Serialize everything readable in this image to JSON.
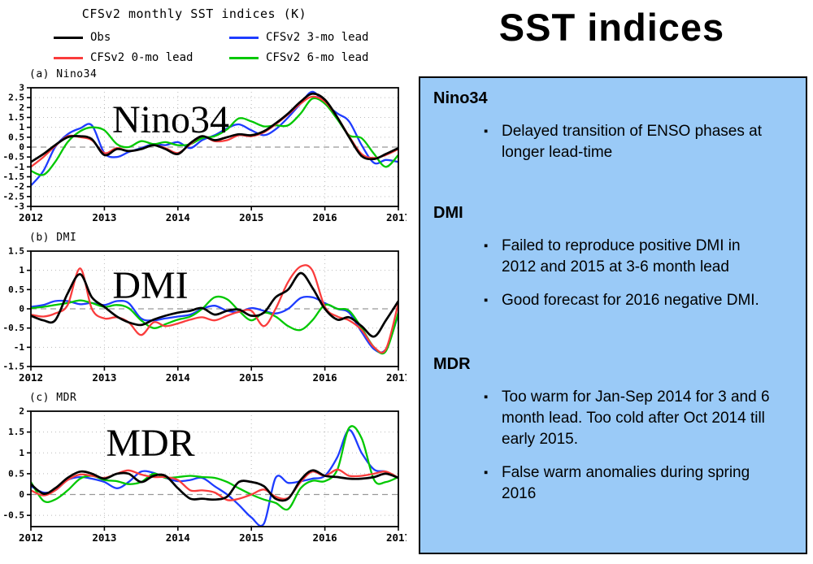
{
  "figure": {
    "title": "CFSv2 monthly SST indices (K)",
    "legend": [
      {
        "label": "Obs",
        "color": "#000000"
      },
      {
        "label": "CFSv2 0-mo lead",
        "color": "#fa3c3c"
      },
      {
        "label": "CFSv2 3-mo lead",
        "color": "#1e3cff"
      },
      {
        "label": "CFSv2 6-mo lead",
        "color": "#00c800"
      }
    ],
    "colors": {
      "grid": "#bbbbbb",
      "zero_line": "#999999",
      "axis": "#000000"
    }
  },
  "chart_data": [
    {
      "type": "line",
      "panel_label": "(a) Nino34",
      "inner_label": "Nino34",
      "ylim": [
        -3,
        3
      ],
      "yticks": [
        "3",
        "2.5",
        "2",
        "1.5",
        "1",
        "0.5",
        "0",
        "-0.5",
        "-1",
        "-1.5",
        "-2",
        "-2.5",
        "-3"
      ],
      "xlabels": [
        "2012",
        "2013",
        "2014",
        "2015",
        "2016",
        "2017"
      ],
      "grid": "dotted",
      "x": [
        2012,
        2012.17,
        2012.33,
        2012.5,
        2012.67,
        2012.83,
        2013,
        2013.17,
        2013.33,
        2013.5,
        2013.67,
        2013.83,
        2014,
        2014.17,
        2014.33,
        2014.5,
        2014.67,
        2014.83,
        2015,
        2015.17,
        2015.33,
        2015.5,
        2015.67,
        2015.83,
        2016,
        2016.17,
        2016.33,
        2016.5,
        2016.67,
        2016.83,
        2017
      ],
      "series": [
        {
          "name": "Obs",
          "values": [
            -0.75,
            -0.35,
            0.1,
            0.5,
            0.55,
            0.4,
            -0.4,
            -0.1,
            -0.2,
            -0.1,
            0.1,
            -0.1,
            -0.35,
            0.2,
            0.55,
            0.35,
            0.5,
            0.65,
            0.6,
            0.8,
            1.2,
            1.7,
            2.3,
            2.7,
            2.4,
            1.5,
            0.5,
            -0.45,
            -0.6,
            -0.35,
            -0.05
          ]
        },
        {
          "name": "CFSv2 0-mo lead",
          "values": [
            -1.0,
            -0.5,
            0.05,
            0.55,
            0.5,
            0.35,
            -0.3,
            -0.05,
            -0.2,
            -0.1,
            0.1,
            -0.05,
            -0.3,
            0.15,
            0.55,
            0.3,
            0.35,
            0.6,
            0.55,
            0.75,
            1.15,
            1.65,
            2.2,
            2.55,
            2.3,
            1.5,
            0.55,
            -0.35,
            -0.55,
            -0.4,
            -0.1
          ]
        },
        {
          "name": "CFSv2 3-mo lead",
          "values": [
            -1.95,
            -1.2,
            0.0,
            0.65,
            0.95,
            1.1,
            -0.3,
            -0.5,
            -0.25,
            -0.05,
            0.15,
            0.1,
            0.25,
            -0.05,
            0.35,
            0.6,
            0.95,
            1.15,
            0.85,
            0.6,
            0.9,
            1.5,
            2.2,
            2.8,
            2.2,
            1.7,
            1.3,
            0.1,
            -0.8,
            -0.65,
            -0.75
          ]
        },
        {
          "name": "CFSv2 6-mo lead",
          "values": [
            -1.2,
            -1.4,
            -0.75,
            0.25,
            0.8,
            1.0,
            0.85,
            0.15,
            0.0,
            0.3,
            0.15,
            0.25,
            0.1,
            0.15,
            0.45,
            0.55,
            0.9,
            1.45,
            1.3,
            1.05,
            1.1,
            1.1,
            1.7,
            2.45,
            2.2,
            1.4,
            0.6,
            0.45,
            -0.35,
            -1.0,
            -0.4
          ]
        }
      ]
    },
    {
      "type": "line",
      "panel_label": "(b) DMI",
      "inner_label": "DMI",
      "ylim": [
        -1.5,
        1.5
      ],
      "yticks": [
        "1.5",
        "1",
        "0.5",
        "0",
        "-0.5",
        "-1",
        "-1.5"
      ],
      "xlabels": [
        "2012",
        "2013",
        "2014",
        "2015",
        "2016",
        "2017"
      ],
      "grid": "dotted",
      "x": [
        2012,
        2012.17,
        2012.33,
        2012.5,
        2012.67,
        2012.83,
        2013,
        2013.17,
        2013.33,
        2013.5,
        2013.67,
        2013.83,
        2014,
        2014.17,
        2014.33,
        2014.5,
        2014.67,
        2014.83,
        2015,
        2015.17,
        2015.33,
        2015.5,
        2015.67,
        2015.83,
        2016,
        2016.17,
        2016.33,
        2016.5,
        2016.67,
        2016.83,
        2017
      ],
      "series": [
        {
          "name": "Obs",
          "values": [
            -0.18,
            -0.3,
            -0.3,
            0.4,
            0.9,
            0.3,
            0.05,
            -0.2,
            -0.35,
            -0.42,
            -0.28,
            -0.18,
            -0.1,
            -0.05,
            0.02,
            -0.15,
            -0.05,
            -0.02,
            -0.18,
            -0.1,
            0.3,
            0.5,
            0.93,
            0.55,
            0.0,
            -0.28,
            -0.22,
            -0.45,
            -0.72,
            -0.3,
            0.2
          ]
        },
        {
          "name": "CFSv2 0-mo lead",
          "values": [
            -0.15,
            -0.2,
            -0.12,
            0.1,
            1.05,
            0.0,
            -0.25,
            -0.22,
            -0.35,
            -0.68,
            -0.35,
            -0.45,
            -0.38,
            -0.28,
            -0.22,
            -0.3,
            -0.18,
            -0.08,
            -0.05,
            -0.45,
            0.0,
            0.7,
            1.1,
            1.0,
            0.05,
            -0.2,
            -0.3,
            -0.55,
            -1.0,
            -1.05,
            0.15
          ]
        },
        {
          "name": "CFSv2 3-mo lead",
          "values": [
            0.05,
            0.1,
            0.2,
            0.2,
            0.12,
            0.15,
            0.1,
            0.2,
            0.15,
            -0.25,
            -0.3,
            -0.25,
            -0.2,
            -0.15,
            0.0,
            0.08,
            -0.05,
            -0.08,
            0.02,
            -0.05,
            -0.12,
            0.0,
            0.28,
            0.3,
            0.15,
            0.0,
            -0.1,
            -0.6,
            -1.05,
            -1.05,
            -0.15
          ]
        },
        {
          "name": "CFSv2 6-mo lead",
          "values": [
            0.02,
            0.05,
            0.1,
            0.15,
            0.22,
            0.15,
            0.05,
            0.1,
            0.02,
            -0.3,
            -0.5,
            -0.4,
            -0.28,
            -0.2,
            0.0,
            0.3,
            0.25,
            -0.05,
            -0.3,
            -0.1,
            -0.2,
            -0.45,
            -0.55,
            -0.3,
            0.1,
            0.0,
            -0.05,
            -0.5,
            -1.0,
            -1.1,
            -0.1
          ]
        }
      ]
    },
    {
      "type": "line",
      "panel_label": "(c) MDR",
      "inner_label": "MDR",
      "ylim": [
        -0.77,
        2
      ],
      "yticks": [
        "2",
        "1.5",
        "1",
        "0.5",
        "0",
        "-0.5"
      ],
      "xlabels": [
        "2012",
        "2013",
        "2014",
        "2015",
        "2016",
        "2017"
      ],
      "grid": "dotted",
      "x": [
        2012,
        2012.17,
        2012.33,
        2012.5,
        2012.67,
        2012.83,
        2013,
        2013.17,
        2013.33,
        2013.5,
        2013.67,
        2013.83,
        2014,
        2014.17,
        2014.33,
        2014.5,
        2014.67,
        2014.83,
        2015,
        2015.17,
        2015.33,
        2015.5,
        2015.67,
        2015.83,
        2016,
        2016.17,
        2016.33,
        2016.5,
        2016.67,
        2016.83,
        2017
      ],
      "series": [
        {
          "name": "Obs",
          "values": [
            0.25,
            0.02,
            0.15,
            0.4,
            0.55,
            0.5,
            0.38,
            0.5,
            0.5,
            0.3,
            0.45,
            0.45,
            0.15,
            -0.1,
            -0.1,
            -0.12,
            -0.05,
            0.3,
            0.3,
            0.2,
            -0.1,
            -0.1,
            0.35,
            0.58,
            0.45,
            0.42,
            0.38,
            0.38,
            0.42,
            0.5,
            0.4
          ]
        },
        {
          "name": "CFSv2 0-mo lead",
          "values": [
            0.1,
            -0.02,
            0.1,
            0.35,
            0.48,
            0.45,
            0.4,
            0.5,
            0.58,
            0.48,
            0.42,
            0.42,
            0.35,
            0.1,
            0.1,
            0.05,
            -0.13,
            -0.1,
            0.0,
            0.12,
            -0.05,
            -0.08,
            0.3,
            0.55,
            0.45,
            0.6,
            0.45,
            0.45,
            0.5,
            0.55,
            0.4
          ]
        },
        {
          "name": "CFSv2 3-mo lead",
          "values": [
            0.2,
            0.05,
            0.1,
            0.35,
            0.42,
            0.38,
            0.3,
            0.15,
            0.3,
            0.55,
            0.52,
            0.4,
            0.32,
            0.35,
            0.4,
            0.2,
            0.0,
            -0.25,
            -0.55,
            -0.7,
            0.4,
            0.28,
            0.32,
            0.38,
            0.45,
            0.9,
            1.55,
            1.0,
            0.6,
            0.55,
            0.4
          ]
        },
        {
          "name": "CFSv2 6-mo lead",
          "values": [
            0.3,
            -0.15,
            -0.12,
            0.1,
            0.38,
            0.45,
            0.35,
            0.32,
            0.25,
            0.3,
            0.5,
            0.4,
            0.42,
            0.45,
            0.42,
            0.4,
            0.3,
            0.15,
            0.0,
            -0.12,
            -0.2,
            -0.35,
            0.15,
            0.33,
            0.32,
            0.6,
            1.6,
            1.35,
            0.35,
            0.3,
            0.42
          ]
        }
      ]
    }
  ],
  "panel": {
    "title": "SST indices",
    "background": "#9acaf7",
    "sections": [
      {
        "heading": "Nino34",
        "bullets": [
          "Delayed transition of ENSO phases at longer lead-time"
        ]
      },
      {
        "heading": "DMI",
        "bullets": [
          "Failed to reproduce positive DMI in 2012 and 2015 at 3-6 month lead",
          "Good forecast for 2016 negative DMI."
        ]
      },
      {
        "heading": "MDR",
        "bullets": [
          "Too warm for Jan-Sep 2014 for 3 and 6 month lead.  Too cold after Oct 2014 till early 2015.",
          "False warm anomalies during spring 2016"
        ]
      }
    ]
  }
}
